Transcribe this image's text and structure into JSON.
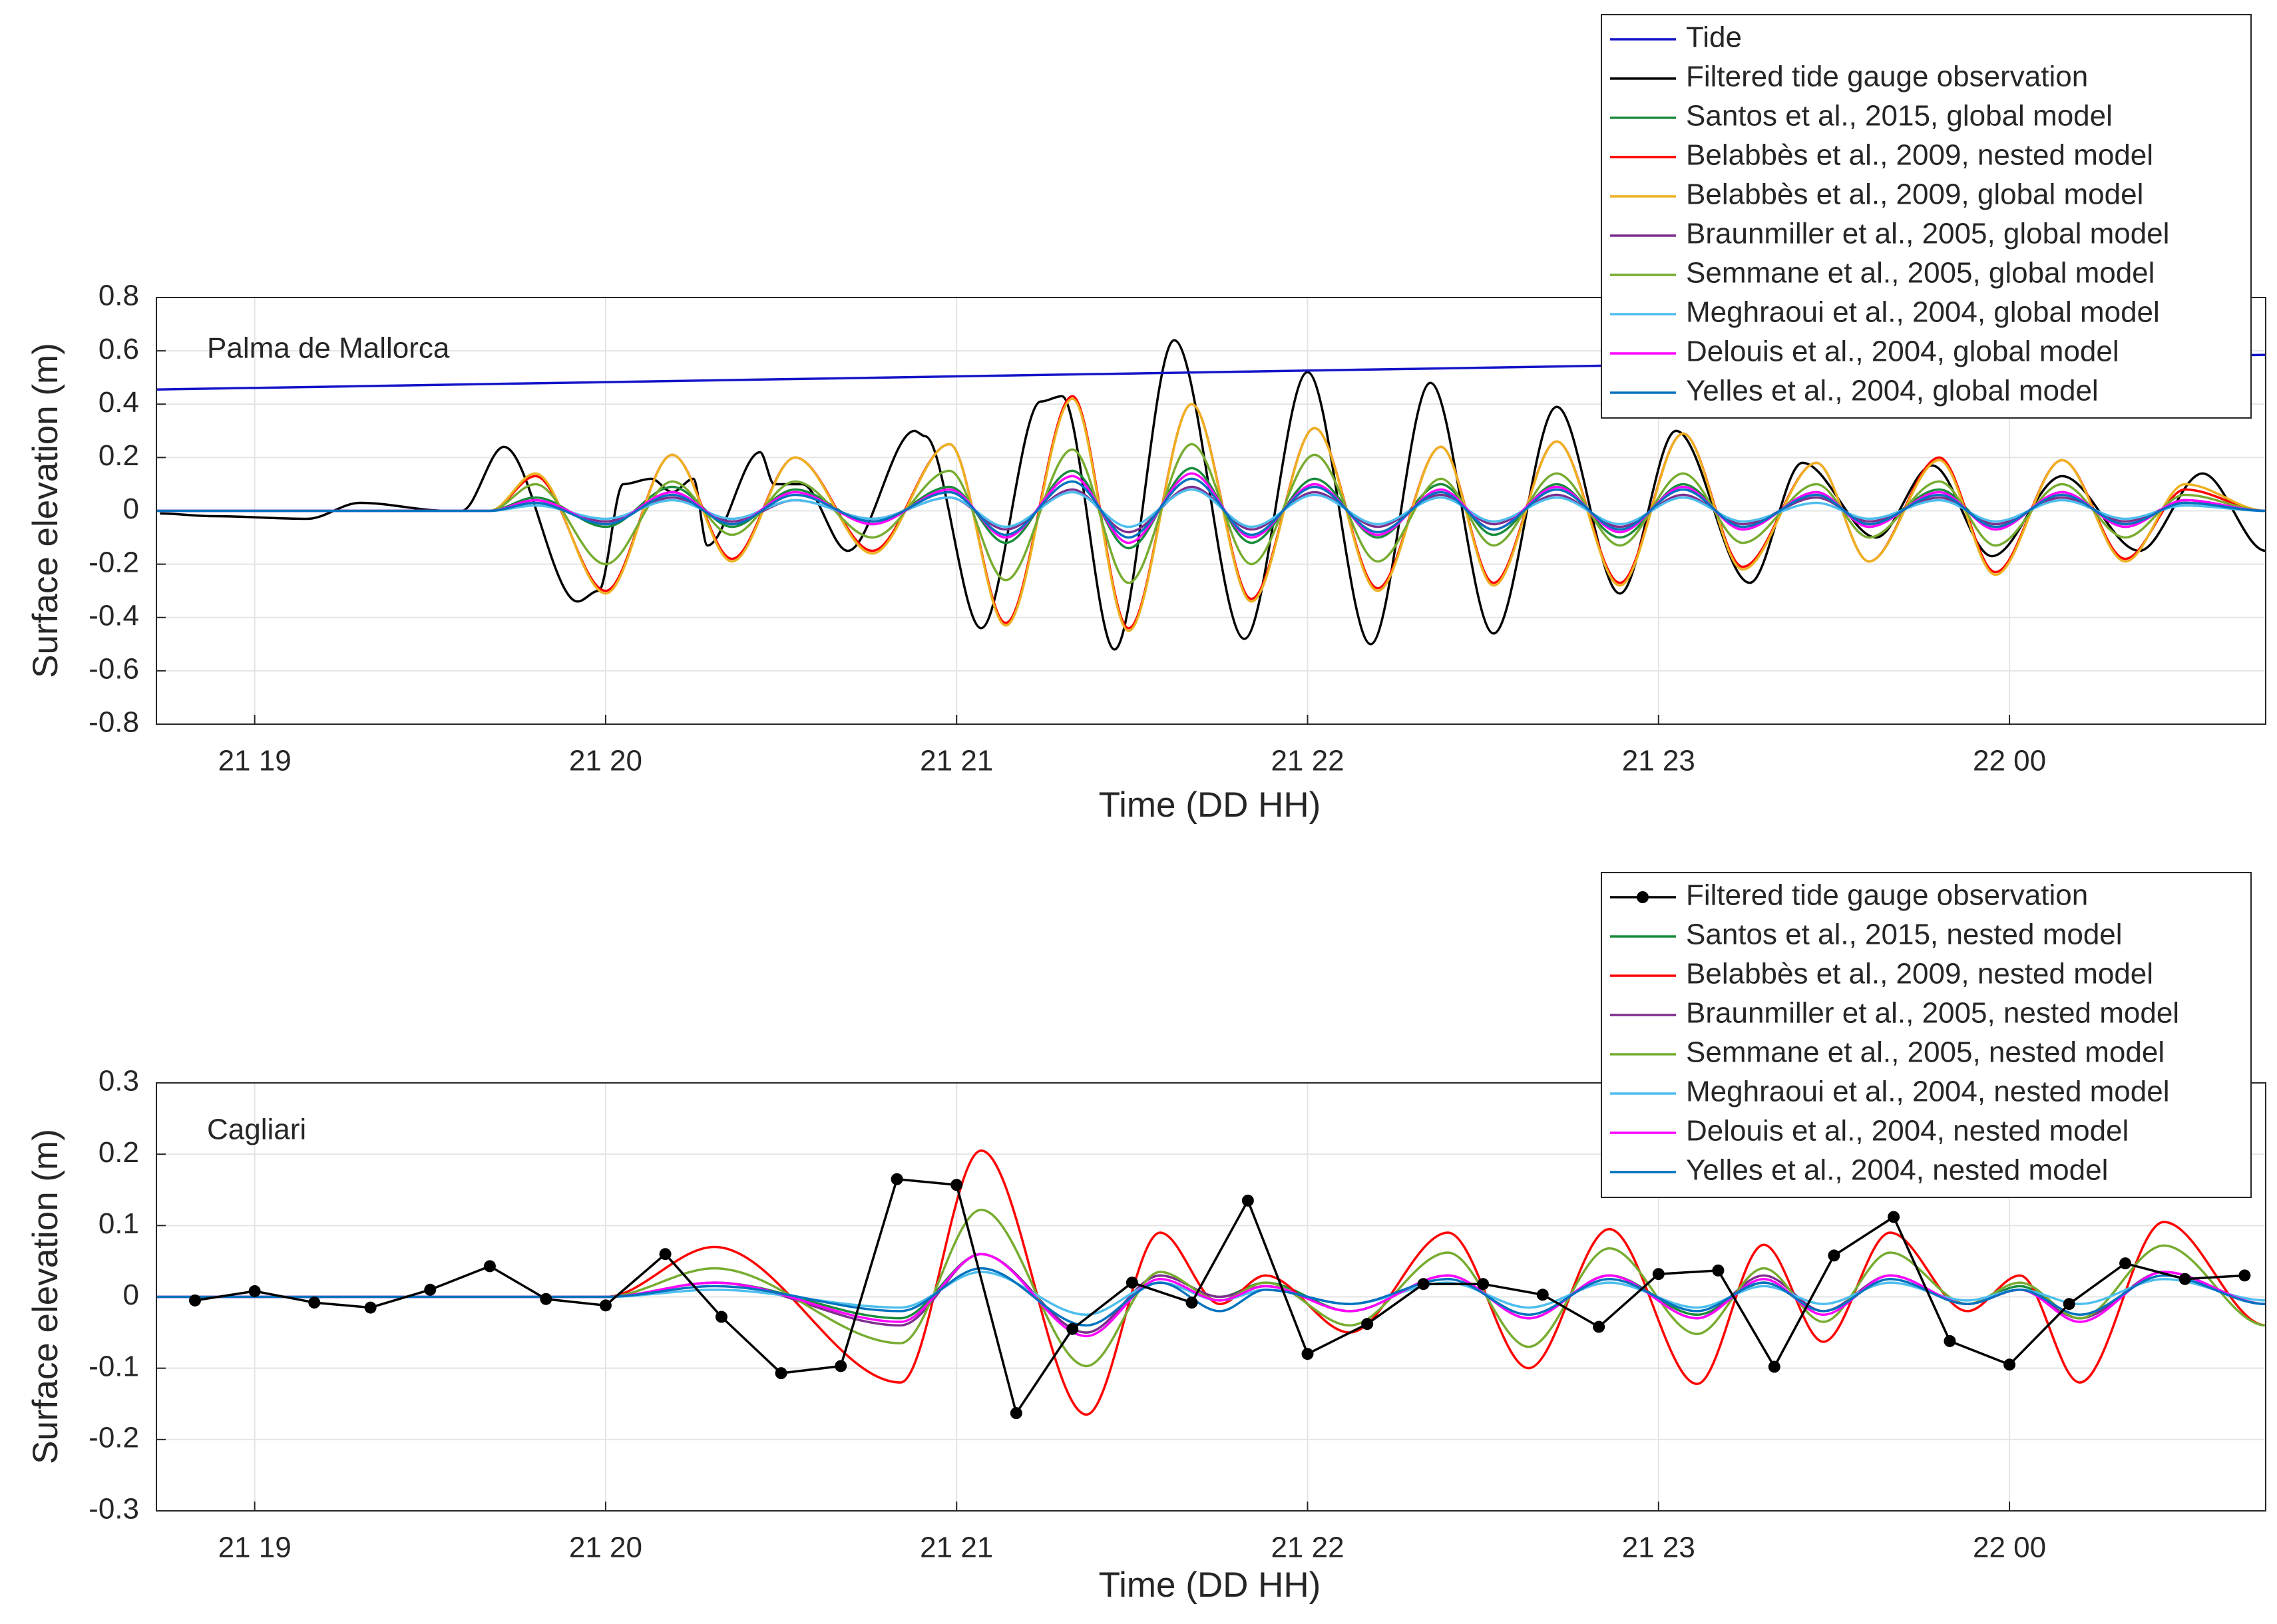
{
  "chart_data": [
    {
      "type": "line",
      "annotation": "Palma de Mallorca",
      "xlabel": "Time (DD HH)",
      "ylabel": "Surface elevation (m)",
      "xlim": [
        18.72,
        24.73
      ],
      "ylim": [
        -0.8,
        0.8
      ],
      "xticks": [
        {
          "value": 19,
          "label": "21 19"
        },
        {
          "value": 20,
          "label": "21 20"
        },
        {
          "value": 21,
          "label": "21 21"
        },
        {
          "value": 22,
          "label": "21 22"
        },
        {
          "value": 23,
          "label": "21 23"
        },
        {
          "value": 24,
          "label": "22 00"
        }
      ],
      "yticks": [
        -0.8,
        -0.6,
        -0.4,
        -0.2,
        0,
        0.2,
        0.4,
        0.6,
        0.8
      ],
      "grid": true,
      "legend": "northeast",
      "x": [
        18.72,
        19.5,
        19.67,
        19.8,
        20.0,
        20.19,
        20.36,
        20.54,
        20.76,
        20.98,
        21.14,
        21.33,
        21.49,
        21.67,
        21.84,
        22.02,
        22.2,
        22.38,
        22.53,
        22.71,
        22.89,
        23.07,
        23.24,
        23.45,
        23.6,
        23.8,
        23.96,
        24.15,
        24.33,
        24.5,
        24.73
      ],
      "series": [
        {
          "name": "Tide",
          "color": "#1414c8",
          "x": [
            18.72,
            24.73
          ],
          "values": [
            0.455,
            0.585
          ]
        },
        {
          "name": "Filtered tide gauge observation",
          "color": "#000000",
          "x": [
            18.73,
            18.88,
            19.15,
            19.3,
            19.55,
            19.59,
            19.71,
            19.92,
            19.98,
            20.05,
            20.13,
            20.19,
            20.25,
            20.29,
            20.44,
            20.48,
            20.56,
            20.69,
            20.88,
            20.91,
            21.07,
            21.24,
            21.3,
            21.45,
            21.62,
            21.82,
            22.0,
            22.18,
            22.35,
            22.53,
            22.71,
            22.89,
            23.05,
            23.26,
            23.41,
            23.62,
            23.78,
            23.95,
            24.15,
            24.37,
            24.55,
            24.73
          ],
          "values": [
            -0.01,
            -0.02,
            -0.03,
            0.03,
            0,
            0,
            0.24,
            -0.34,
            -0.3,
            0.1,
            0.12,
            0.07,
            0.12,
            -0.13,
            0.22,
            0.1,
            0.1,
            -0.15,
            0.3,
            0.28,
            -0.44,
            0.41,
            0.43,
            -0.52,
            0.64,
            -0.48,
            0.52,
            -0.5,
            0.48,
            -0.46,
            0.39,
            -0.31,
            0.3,
            -0.27,
            0.18,
            -0.1,
            0.17,
            -0.17,
            0.13,
            -0.15,
            0.14,
            -0.15
          ]
        },
        {
          "name": "Santos et al., 2015, global model",
          "color": "#1a8c3c",
          "values": [
            0,
            0,
            0,
            0.05,
            -0.06,
            0.09,
            -0.06,
            0.08,
            -0.05,
            0.09,
            -0.12,
            0.15,
            -0.14,
            0.16,
            -0.12,
            0.12,
            -0.1,
            0.1,
            -0.09,
            0.1,
            -0.1,
            0.1,
            -0.07,
            0.07,
            -0.06,
            0.08,
            -0.07,
            0.07,
            -0.06,
            0.04,
            0
          ]
        },
        {
          "name": "Belabbès et al., 2009, nested model",
          "color": "#ff0000",
          "values": [
            0,
            0,
            0,
            0.13,
            -0.3,
            0.21,
            -0.18,
            0.2,
            -0.15,
            0.25,
            -0.42,
            0.43,
            -0.44,
            0.4,
            -0.33,
            0.31,
            -0.29,
            0.24,
            -0.27,
            0.26,
            -0.27,
            0.29,
            -0.21,
            0.18,
            -0.19,
            0.2,
            -0.23,
            0.19,
            -0.18,
            0.08,
            0
          ]
        },
        {
          "name": "Belabbès et al., 2009, global model",
          "color": "#edb120",
          "values": [
            0,
            0,
            0,
            0.14,
            -0.31,
            0.21,
            -0.19,
            0.2,
            -0.16,
            0.25,
            -0.43,
            0.42,
            -0.45,
            0.4,
            -0.34,
            0.31,
            -0.3,
            0.24,
            -0.28,
            0.26,
            -0.28,
            0.29,
            -0.22,
            0.18,
            -0.19,
            0.19,
            -0.24,
            0.19,
            -0.19,
            0.1,
            0
          ]
        },
        {
          "name": "Braunmiller et al., 2005, global model",
          "color": "#7e2f8e",
          "values": [
            0,
            0,
            0,
            0.03,
            -0.04,
            0.05,
            -0.04,
            0.04,
            -0.03,
            0.05,
            -0.07,
            0.08,
            -0.08,
            0.09,
            -0.07,
            0.07,
            -0.06,
            0.06,
            -0.05,
            0.06,
            -0.06,
            0.06,
            -0.05,
            0.05,
            -0.04,
            0.05,
            -0.05,
            0.05,
            -0.04,
            0.03,
            0
          ]
        },
        {
          "name": "Semmane et al., 2005, global model",
          "color": "#77ac30",
          "values": [
            0,
            0,
            0,
            0.1,
            -0.2,
            0.11,
            -0.09,
            0.11,
            -0.1,
            0.15,
            -0.26,
            0.23,
            -0.27,
            0.25,
            -0.2,
            0.21,
            -0.19,
            0.12,
            -0.13,
            0.14,
            -0.13,
            0.14,
            -0.12,
            0.1,
            -0.1,
            0.11,
            -0.13,
            0.1,
            -0.1,
            0.06,
            0
          ]
        },
        {
          "name": "Meghraoui et al., 2004, global model",
          "color": "#4dbeee",
          "values": [
            0,
            0,
            0,
            0.02,
            -0.03,
            0.04,
            -0.03,
            0.04,
            -0.03,
            0.05,
            -0.06,
            0.07,
            -0.06,
            0.08,
            -0.06,
            0.06,
            -0.05,
            0.05,
            -0.04,
            0.05,
            -0.05,
            0.05,
            -0.04,
            0.03,
            -0.03,
            0.04,
            -0.04,
            0.04,
            -0.03,
            0.02,
            0
          ]
        },
        {
          "name": "Delouis et al., 2004, global model",
          "color": "#ff00ff",
          "values": [
            0,
            0,
            0,
            0.04,
            -0.05,
            0.07,
            -0.05,
            0.07,
            -0.05,
            0.08,
            -0.1,
            0.13,
            -0.12,
            0.14,
            -0.1,
            0.1,
            -0.09,
            0.08,
            -0.07,
            0.09,
            -0.08,
            0.09,
            -0.07,
            0.07,
            -0.06,
            0.07,
            -0.07,
            0.07,
            -0.06,
            0.04,
            0
          ]
        },
        {
          "name": "Yelles et al., 2004, global model",
          "color": "#0072bd",
          "values": [
            0,
            0,
            0,
            0.03,
            -0.05,
            0.06,
            -0.05,
            0.06,
            -0.04,
            0.07,
            -0.09,
            0.11,
            -0.1,
            0.12,
            -0.09,
            0.09,
            -0.08,
            0.07,
            -0.07,
            0.08,
            -0.07,
            0.08,
            -0.06,
            0.06,
            -0.05,
            0.06,
            -0.06,
            0.06,
            -0.05,
            0.03,
            0
          ]
        }
      ]
    },
    {
      "type": "line",
      "annotation": "Cagliari",
      "xlabel": "Time (DD HH)",
      "ylabel": "Surface elevation (m)",
      "xlim": [
        18.72,
        24.73
      ],
      "ylim": [
        -0.3,
        0.3
      ],
      "xticks": [
        {
          "value": 19,
          "label": "21 19"
        },
        {
          "value": 20,
          "label": "21 20"
        },
        {
          "value": 21,
          "label": "21 21"
        },
        {
          "value": 22,
          "label": "21 22"
        },
        {
          "value": 23,
          "label": "21 23"
        },
        {
          "value": 24,
          "label": "22 00"
        }
      ],
      "yticks": [
        -0.3,
        -0.2,
        -0.1,
        0,
        0.1,
        0.2,
        0.3
      ],
      "grid": true,
      "legend": "northeast",
      "x": [
        18.72,
        20.0,
        20.31,
        20.84,
        21.07,
        21.37,
        21.58,
        21.75,
        21.88,
        22.12,
        22.4,
        22.63,
        22.86,
        23.11,
        23.3,
        23.47,
        23.66,
        23.88,
        24.03,
        24.2,
        24.44,
        24.73
      ],
      "series": [
        {
          "name": "Filtered tide gauge observation",
          "color": "#000000",
          "markers": true,
          "x": [
            18.83,
            19,
            19.17,
            19.33,
            19.5,
            19.67,
            19.83,
            20,
            20.17,
            20.33,
            20.5,
            20.67,
            20.83,
            21,
            21.17,
            21.33,
            21.5,
            21.67,
            21.83,
            22,
            22.17,
            22.33,
            22.5,
            22.67,
            22.83,
            23,
            23.17,
            23.33,
            23.5,
            23.67,
            23.83,
            24,
            24.17,
            24.33,
            24.5,
            24.67
          ],
          "values": [
            -0.005,
            0.008,
            -0.008,
            -0.015,
            0.01,
            0.043,
            -0.003,
            -0.012,
            0.06,
            -0.028,
            -0.107,
            -0.097,
            0.165,
            0.157,
            -0.163,
            -0.045,
            0.02,
            -0.008,
            0.135,
            -0.08,
            -0.038,
            0.018,
            0.018,
            0.003,
            -0.042,
            0.032,
            0.037,
            -0.098,
            0.058,
            0.112,
            -0.062,
            -0.095,
            -0.01,
            0.047,
            0.025,
            0.03
          ]
        },
        {
          "name": "Santos et al., 2015, nested model",
          "color": "#1a8c3c",
          "values": [
            0,
            0,
            0.02,
            -0.03,
            0.06,
            -0.05,
            0.03,
            0,
            0.02,
            -0.02,
            0.03,
            -0.03,
            0.03,
            -0.025,
            0.02,
            -0.02,
            0.03,
            -0.01,
            0.015,
            -0.03,
            0.035,
            -0.01
          ]
        },
        {
          "name": "Belabbès et al., 2009, nested model",
          "color": "#ff0000",
          "values": [
            0,
            0,
            0.07,
            -0.12,
            0.205,
            -0.165,
            0.09,
            -0.01,
            0.03,
            -0.05,
            0.09,
            -0.1,
            0.095,
            -0.122,
            0.073,
            -0.063,
            0.09,
            -0.02,
            0.03,
            -0.12,
            0.105,
            -0.04
          ]
        },
        {
          "name": "Braunmiller et al., 2005, nested model",
          "color": "#7e2f8e",
          "values": [
            0,
            0,
            0.02,
            -0.04,
            0.06,
            -0.05,
            0.03,
            0,
            0.015,
            -0.02,
            0.03,
            -0.03,
            0.03,
            -0.03,
            0.03,
            -0.02,
            0.03,
            -0.01,
            0.01,
            -0.03,
            0.035,
            -0.01
          ]
        },
        {
          "name": "Semmane et al., 2005, nested model",
          "color": "#77ac30",
          "values": [
            0,
            0,
            0.04,
            -0.065,
            0.122,
            -0.097,
            0.035,
            -0.005,
            0.02,
            -0.04,
            0.062,
            -0.07,
            0.068,
            -0.052,
            0.04,
            -0.035,
            0.062,
            -0.01,
            0.02,
            -0.03,
            0.072,
            -0.04
          ]
        },
        {
          "name": "Meghraoui et al., 2004, nested model",
          "color": "#4dbeee",
          "values": [
            0,
            0,
            0.01,
            -0.015,
            0.035,
            -0.025,
            0.02,
            -0.005,
            0.01,
            -0.01,
            0.02,
            -0.015,
            0.02,
            -0.015,
            0.015,
            -0.01,
            0.02,
            -0.005,
            0.01,
            -0.01,
            0.025,
            -0.005
          ]
        },
        {
          "name": "Delouis et al., 2004, nested model",
          "color": "#ff00ff",
          "values": [
            0,
            0,
            0.02,
            -0.035,
            0.06,
            -0.055,
            0.025,
            -0.005,
            0.015,
            -0.02,
            0.03,
            -0.03,
            0.03,
            -0.03,
            0.025,
            -0.025,
            0.03,
            -0.01,
            0.01,
            -0.035,
            0.035,
            -0.01
          ]
        },
        {
          "name": "Yelles et al., 2004, nested model",
          "color": "#0072bd",
          "values": [
            0,
            0,
            0.015,
            -0.02,
            0.04,
            -0.04,
            0.02,
            -0.02,
            0.01,
            -0.01,
            0.025,
            -0.025,
            0.025,
            -0.02,
            0.02,
            -0.02,
            0.025,
            -0.01,
            0.01,
            -0.025,
            0.03,
            -0.01
          ]
        }
      ]
    }
  ]
}
